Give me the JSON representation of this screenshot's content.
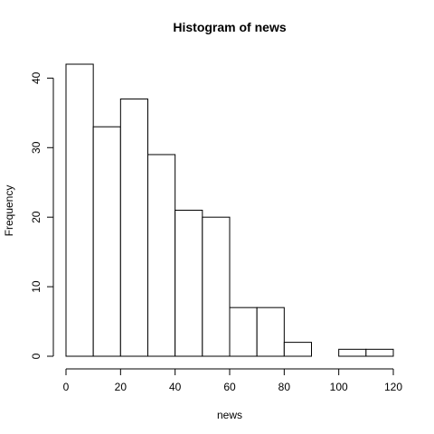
{
  "chart_data": {
    "type": "bar",
    "title": "Histogram of news",
    "xlabel": "news",
    "ylabel": "Frequency",
    "bins": [
      {
        "from": 0,
        "to": 10,
        "count": 42
      },
      {
        "from": 10,
        "to": 20,
        "count": 33
      },
      {
        "from": 20,
        "to": 30,
        "count": 37
      },
      {
        "from": 30,
        "to": 40,
        "count": 29
      },
      {
        "from": 40,
        "to": 50,
        "count": 21
      },
      {
        "from": 50,
        "to": 60,
        "count": 20
      },
      {
        "from": 60,
        "to": 70,
        "count": 7
      },
      {
        "from": 70,
        "to": 80,
        "count": 7
      },
      {
        "from": 80,
        "to": 90,
        "count": 2
      },
      {
        "from": 90,
        "to": 100,
        "count": 0
      },
      {
        "from": 100,
        "to": 110,
        "count": 1
      },
      {
        "from": 110,
        "to": 120,
        "count": 1
      }
    ],
    "xlim": [
      0,
      120
    ],
    "ylim": [
      0,
      42
    ],
    "x_ticks": [
      0,
      20,
      40,
      60,
      80,
      100,
      120
    ],
    "y_ticks": [
      0,
      10,
      20,
      30,
      40
    ],
    "grid": false
  }
}
